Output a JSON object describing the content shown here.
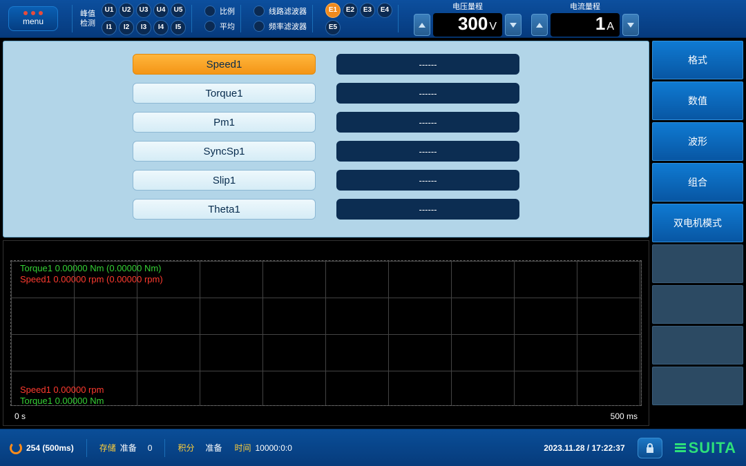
{
  "topbar": {
    "menu_label": "menu",
    "peak_label": "峰值\n检测",
    "u_channels": [
      "U1",
      "U2",
      "U3",
      "U4",
      "U5"
    ],
    "i_channels": [
      "I1",
      "I2",
      "I3",
      "I4",
      "I5"
    ],
    "ratio_label": "比例",
    "avg_label": "平均",
    "line_filter_label": "线路滤波器",
    "freq_filter_label": "频率滤波器",
    "e_labels": [
      "E1",
      "E2",
      "E3",
      "E4",
      "E5"
    ],
    "e_active_index": 0,
    "voltage_range": {
      "title": "电压量程",
      "value": "300",
      "unit": "V"
    },
    "current_range": {
      "title": "电流量程",
      "value": "1",
      "unit": "A"
    }
  },
  "params": [
    {
      "label": "Speed1",
      "value": "------",
      "selected": true
    },
    {
      "label": "Torque1",
      "value": "------",
      "selected": false
    },
    {
      "label": "Pm1",
      "value": "------",
      "selected": false
    },
    {
      "label": "SyncSp1",
      "value": "------",
      "selected": false
    },
    {
      "label": "Slip1",
      "value": "------",
      "selected": false
    },
    {
      "label": "Theta1",
      "value": "------",
      "selected": false
    }
  ],
  "side_tabs": {
    "active": [
      "格式",
      "数值",
      "波形",
      "组合",
      "双电机模式"
    ],
    "disabled_count": 4
  },
  "chart": {
    "traces_top": [
      {
        "text": "Torque1  0.00000 Nm (0.00000 Nm)",
        "color": "green"
      },
      {
        "text": "Speed1  0.00000 rpm (0.00000 rpm)",
        "color": "red"
      }
    ],
    "traces_bottom": [
      {
        "text": "Speed1 0.00000 rpm",
        "color": "red"
      },
      {
        "text": "Torque1 0.00000 Nm",
        "color": "green"
      }
    ],
    "x_start": "0 s",
    "x_end": "500 ms",
    "grid_color": "#444444",
    "background_color": "#000000"
  },
  "status": {
    "cycle": "254 (500ms)",
    "save_label": "存储",
    "ready_label": "准备",
    "ready_value": "0",
    "integ_label": "积分",
    "integ_status": "准备",
    "time_label": "时间",
    "time_value": "10000:0:0",
    "datetime": "2023.11.28 / 17:22:37",
    "logo": "SUITA"
  },
  "colors": {
    "accent_orange": "#f49516",
    "accent_green": "#35d135",
    "accent_red": "#ff3b2f",
    "panel_light": "#b2d5e8",
    "panel_dark": "#0c2d52",
    "header_gradient_top": "#0c4f9e",
    "header_gradient_bottom": "#063a7d"
  }
}
